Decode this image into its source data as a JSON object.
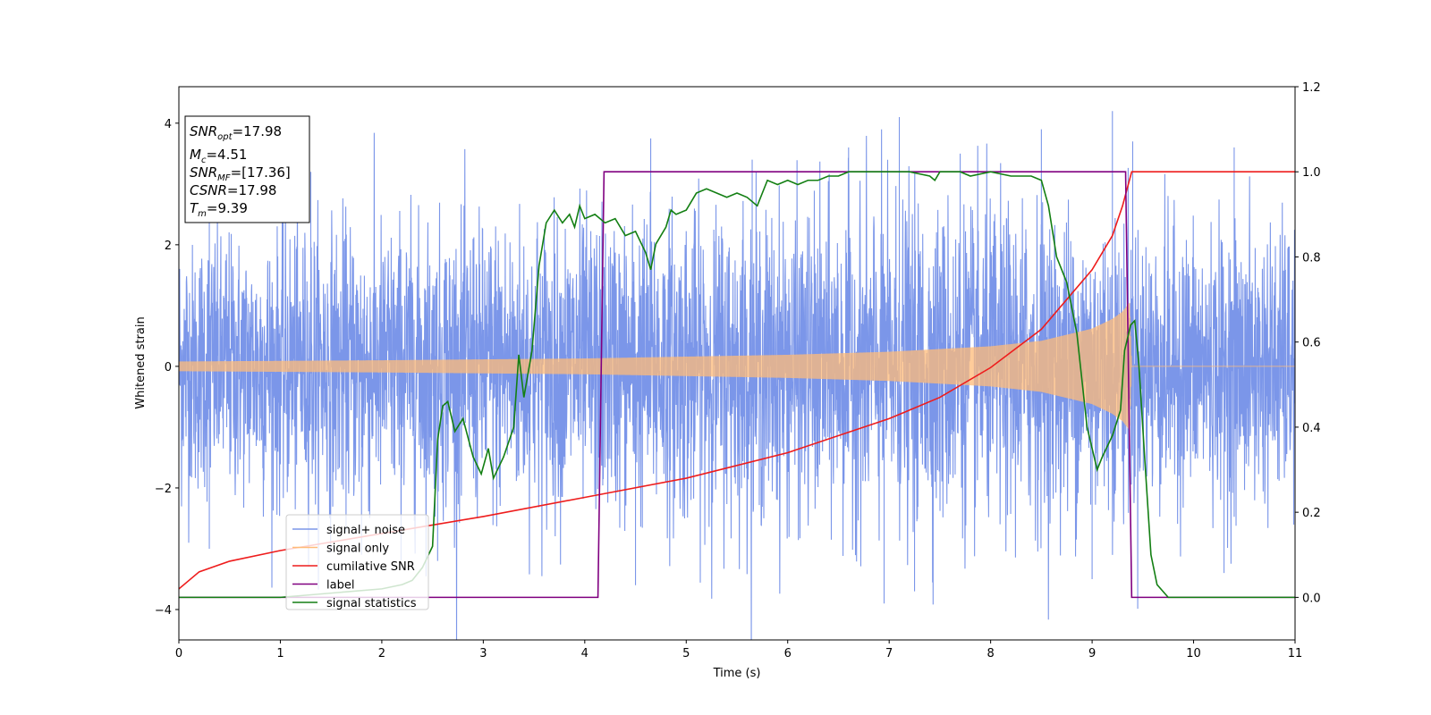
{
  "chart_data": {
    "type": "line",
    "xlabel": "Time (s)",
    "ylabel_left": "Whitened strain",
    "xlim": [
      0,
      11
    ],
    "ylim_left": [
      -4.5,
      4.6
    ],
    "ylim_right": [
      -0.1,
      1.2
    ],
    "xticks": [
      0,
      1,
      2,
      3,
      4,
      5,
      6,
      7,
      8,
      9,
      10,
      11
    ],
    "yticks_left": [
      -4,
      -2,
      0,
      2,
      4
    ],
    "yticks_right": [
      0.0,
      0.2,
      0.4,
      0.6,
      0.8,
      1.0,
      1.2
    ],
    "grid": false,
    "legend_placement": "lower-left",
    "info_box": {
      "line1_main": "SNR",
      "line1_sub": "opt",
      "line1_val": "=17.98",
      "line2_main": "M",
      "line2_sub": "c",
      "line2_val": "=4.51",
      "line3_main": "SNR",
      "line3_sub": "MF",
      "line3_val": "=[17.36]",
      "line4_main": "CSNR",
      "line4_val": "=17.98",
      "line5_main": "T",
      "line5_sub": "m",
      "line5_val": "=9.39"
    },
    "series": [
      {
        "name": "signal+ noise",
        "color": "#7b96e9",
        "axis": "left",
        "description_values": {
          "noise_upper_envelope": [
            [
              0,
              2.2
            ],
            [
              1,
              2.3
            ],
            [
              2,
              2.4
            ],
            [
              3,
              2.5
            ],
            [
              4,
              2.5
            ],
            [
              5,
              2.6
            ],
            [
              6,
              2.6
            ],
            [
              7,
              2.7
            ],
            [
              8,
              2.7
            ],
            [
              9,
              2.6
            ],
            [
              9.4,
              2.4
            ],
            [
              10,
              2.3
            ],
            [
              11,
              2.3
            ]
          ],
          "spike_peaks": [
            [
              0.3,
              2.9
            ],
            [
              1.3,
              3.2
            ],
            [
              4.65,
              3.75
            ],
            [
              5.65,
              3.4
            ],
            [
              6.6,
              3.6
            ],
            [
              7.1,
              4.1
            ],
            [
              7.7,
              3.5
            ],
            [
              8.5,
              3.9
            ],
            [
              9.2,
              4.2
            ],
            [
              9.4,
              3.7
            ],
            [
              10.4,
              3.6
            ]
          ],
          "spike_troughs": [
            [
              0.3,
              -3.0
            ],
            [
              1.8,
              -3.1
            ],
            [
              2.55,
              -3.2
            ],
            [
              4.5,
              -3.6
            ],
            [
              6.95,
              -3.9
            ],
            [
              7.25,
              -3.7
            ],
            [
              9.0,
              -3.5
            ],
            [
              10.3,
              -3.4
            ]
          ]
        }
      },
      {
        "name": "signal only",
        "color": "#ffbb78",
        "axis": "left",
        "amplitude_envelope": [
          [
            0,
            0.08
          ],
          [
            2,
            0.1
          ],
          [
            4,
            0.13
          ],
          [
            6,
            0.19
          ],
          [
            7,
            0.24
          ],
          [
            8,
            0.33
          ],
          [
            8.5,
            0.42
          ],
          [
            9,
            0.62
          ],
          [
            9.2,
            0.78
          ],
          [
            9.3,
            0.9
          ],
          [
            9.37,
            1.05
          ],
          [
            9.39,
            0
          ],
          [
            11,
            0
          ]
        ]
      },
      {
        "name": "cumilative SNR",
        "color": "#ee1c1c",
        "axis": "right",
        "points": [
          [
            0,
            0.02
          ],
          [
            0.2,
            0.06
          ],
          [
            0.5,
            0.085
          ],
          [
            1,
            0.11
          ],
          [
            2,
            0.15
          ],
          [
            3,
            0.19
          ],
          [
            4,
            0.235
          ],
          [
            5,
            0.28
          ],
          [
            6,
            0.34
          ],
          [
            7,
            0.42
          ],
          [
            7.5,
            0.47
          ],
          [
            8,
            0.54
          ],
          [
            8.5,
            0.63
          ],
          [
            9,
            0.77
          ],
          [
            9.2,
            0.85
          ],
          [
            9.3,
            0.92
          ],
          [
            9.39,
            1.0
          ],
          [
            11,
            1.0
          ]
        ]
      },
      {
        "name": "label",
        "color": "#800080",
        "axis": "right",
        "points": [
          [
            0,
            0
          ],
          [
            4.13,
            0
          ],
          [
            4.19,
            1
          ],
          [
            9.33,
            1
          ],
          [
            9.39,
            0
          ],
          [
            11,
            0
          ]
        ]
      },
      {
        "name": "signal statistics",
        "color": "#137f13",
        "axis": "right",
        "points": [
          [
            0,
            0.0
          ],
          [
            1,
            0.0
          ],
          [
            2,
            0.02
          ],
          [
            2.2,
            0.03
          ],
          [
            2.3,
            0.04
          ],
          [
            2.4,
            0.07
          ],
          [
            2.5,
            0.12
          ],
          [
            2.55,
            0.37
          ],
          [
            2.6,
            0.45
          ],
          [
            2.65,
            0.46
          ],
          [
            2.72,
            0.39
          ],
          [
            2.8,
            0.42
          ],
          [
            2.9,
            0.33
          ],
          [
            2.98,
            0.29
          ],
          [
            3.05,
            0.35
          ],
          [
            3.1,
            0.28
          ],
          [
            3.2,
            0.33
          ],
          [
            3.3,
            0.4
          ],
          [
            3.35,
            0.57
          ],
          [
            3.4,
            0.47
          ],
          [
            3.48,
            0.58
          ],
          [
            3.55,
            0.78
          ],
          [
            3.62,
            0.88
          ],
          [
            3.7,
            0.91
          ],
          [
            3.78,
            0.88
          ],
          [
            3.85,
            0.9
          ],
          [
            3.9,
            0.87
          ],
          [
            3.95,
            0.92
          ],
          [
            4.0,
            0.89
          ],
          [
            4.1,
            0.9
          ],
          [
            4.2,
            0.88
          ],
          [
            4.3,
            0.89
          ],
          [
            4.4,
            0.85
          ],
          [
            4.5,
            0.86
          ],
          [
            4.6,
            0.81
          ],
          [
            4.65,
            0.77
          ],
          [
            4.7,
            0.83
          ],
          [
            4.8,
            0.87
          ],
          [
            4.85,
            0.91
          ],
          [
            4.9,
            0.9
          ],
          [
            5.0,
            0.91
          ],
          [
            5.1,
            0.95
          ],
          [
            5.2,
            0.96
          ],
          [
            5.3,
            0.95
          ],
          [
            5.4,
            0.94
          ],
          [
            5.5,
            0.95
          ],
          [
            5.6,
            0.94
          ],
          [
            5.7,
            0.92
          ],
          [
            5.8,
            0.98
          ],
          [
            5.9,
            0.97
          ],
          [
            6.0,
            0.98
          ],
          [
            6.1,
            0.97
          ],
          [
            6.2,
            0.98
          ],
          [
            6.3,
            0.98
          ],
          [
            6.4,
            0.99
          ],
          [
            6.5,
            0.99
          ],
          [
            6.6,
            1.0
          ],
          [
            6.8,
            1.0
          ],
          [
            7.0,
            1.0
          ],
          [
            7.2,
            1.0
          ],
          [
            7.4,
            0.99
          ],
          [
            7.45,
            0.98
          ],
          [
            7.5,
            1.0
          ],
          [
            7.7,
            1.0
          ],
          [
            7.8,
            0.99
          ],
          [
            8.0,
            1.0
          ],
          [
            8.2,
            0.99
          ],
          [
            8.4,
            0.99
          ],
          [
            8.5,
            0.98
          ],
          [
            8.57,
            0.92
          ],
          [
            8.65,
            0.8
          ],
          [
            8.75,
            0.74
          ],
          [
            8.85,
            0.62
          ],
          [
            8.95,
            0.4
          ],
          [
            9.05,
            0.3
          ],
          [
            9.1,
            0.33
          ],
          [
            9.2,
            0.38
          ],
          [
            9.28,
            0.44
          ],
          [
            9.32,
            0.58
          ],
          [
            9.38,
            0.64
          ],
          [
            9.42,
            0.65
          ],
          [
            9.46,
            0.55
          ],
          [
            9.52,
            0.32
          ],
          [
            9.58,
            0.1
          ],
          [
            9.64,
            0.03
          ],
          [
            9.75,
            0.0
          ],
          [
            11,
            0.0
          ]
        ]
      }
    ]
  }
}
